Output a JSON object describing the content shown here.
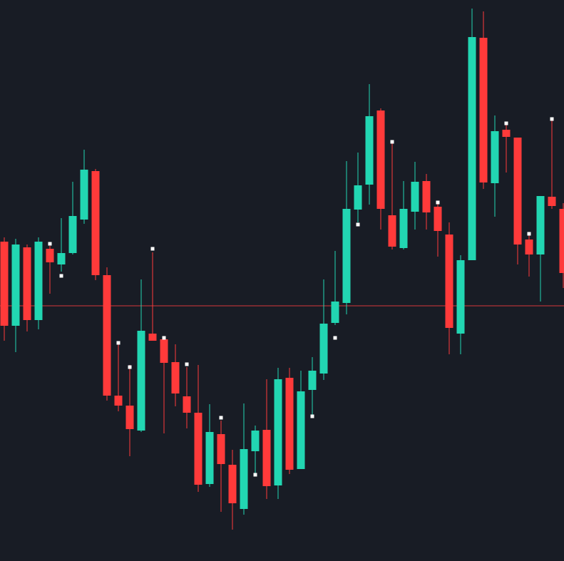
{
  "chart_data": {
    "type": "candlestick",
    "open": [
      448,
      330,
      440,
      338,
      438,
      416,
      432,
      479,
      547,
      401,
      232,
      218,
      183,
      319,
      311,
      279,
      231,
      208,
      108,
      178,
      135,
      73,
      154,
      184,
      106,
      257,
      129,
      240,
      263,
      334,
      362,
      493,
      528,
      632,
      485,
      439,
      490,
      533,
      497,
      458,
      319,
      422,
      734,
      530,
      605,
      594,
      451,
      430,
      511,
      494
    ],
    "high": [
      454,
      452,
      444,
      454,
      442,
      481,
      532,
      577,
      550,
      412,
      304,
      275,
      395,
      433,
      315,
      304,
      272,
      275,
      220,
      197,
      156,
      221,
      190,
      255,
      271,
      271,
      267,
      286,
      395,
      435,
      561,
      573,
      669,
      635,
      587,
      533,
      560,
      543,
      504,
      475,
      429,
      775,
      771,
      625,
      612,
      594,
      457,
      512,
      620,
      502
    ],
    "low": [
      309,
      293,
      322,
      325,
      375,
      406,
      430,
      473,
      394,
      225,
      210,
      147,
      181,
      309,
      179,
      217,
      186,
      97,
      104,
      69,
      44,
      65,
      123,
      87,
      87,
      122,
      129,
      205,
      254,
      331,
      346,
      475,
      500,
      465,
      437,
      437,
      465,
      465,
      427,
      290,
      290,
      422,
      522,
      483,
      545,
      416,
      399,
      364,
      494,
      383
    ],
    "close": [
      330,
      444,
      338,
      448,
      419,
      432,
      484,
      549,
      401,
      232,
      218,
      185,
      323,
      309,
      278,
      235,
      208,
      107,
      181,
      136,
      81,
      157,
      183,
      105,
      255,
      128,
      238,
      267,
      333,
      364,
      494,
      527,
      624,
      494,
      441,
      494,
      532,
      489,
      463,
      327,
      422,
      735,
      531,
      603,
      595,
      444,
      430,
      512,
      498,
      404
    ],
    "markers": [
      null,
      null,
      null,
      null,
      445,
      400,
      null,
      null,
      null,
      null,
      306,
      272,
      null,
      438,
      313,
      null,
      276,
      null,
      null,
      201,
      null,
      null,
      121,
      null,
      null,
      null,
      null,
      203,
      null,
      313,
      null,
      472,
      null,
      null,
      588,
      null,
      null,
      null,
      503,
      null,
      null,
      null,
      null,
      null,
      614,
      null,
      459,
      null,
      620,
      null
    ],
    "hline": 358,
    "ylim": [
      0,
      787
    ],
    "up_color": "#22d6b2",
    "down_color": "#ff3a3a",
    "hline_color": "#d6393b",
    "marker_color": "#ffffff"
  }
}
